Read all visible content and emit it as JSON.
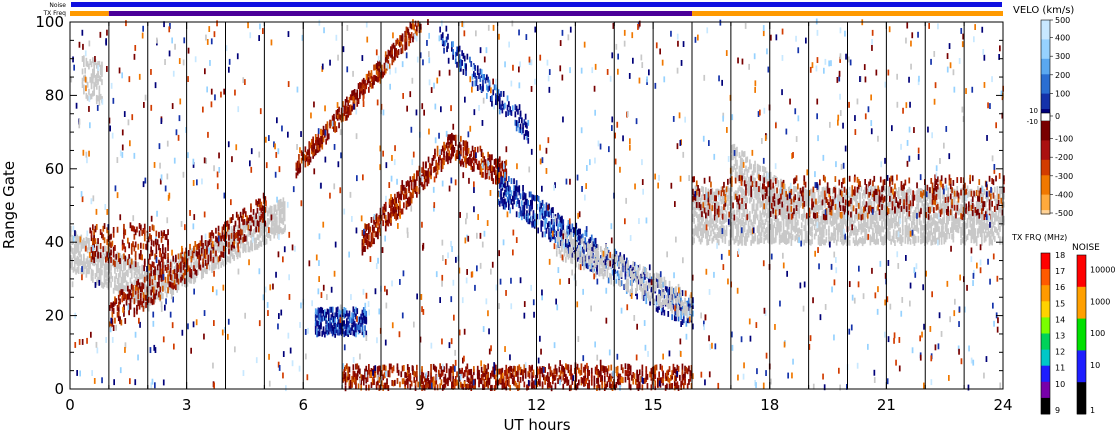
{
  "header": {
    "noise_label": "Noise",
    "txfreq_label": "TX Freq",
    "noise_color": "#1010e0",
    "txfreq_segments": [
      {
        "from": 0,
        "to": 1,
        "color": "#ff9a00"
      },
      {
        "from": 1,
        "to": 16,
        "color": "#4b0099"
      },
      {
        "from": 16,
        "to": 24,
        "color": "#ff9a00"
      }
    ]
  },
  "chart_data": {
    "type": "heatmap",
    "title": "",
    "xlabel": "UT hours",
    "ylabel": "Range Gate",
    "xlim": [
      0,
      24
    ],
    "ylim": [
      0,
      100
    ],
    "xticks": [
      0,
      3,
      6,
      9,
      12,
      15,
      18,
      21,
      24
    ],
    "yticks": [
      0,
      20,
      40,
      60,
      80,
      100
    ],
    "vertical_hour_lines": [
      1,
      2,
      3,
      4,
      5,
      6,
      7,
      8,
      9,
      10,
      11,
      12,
      13,
      14,
      15,
      16,
      17,
      18,
      19,
      20,
      21,
      22,
      23
    ],
    "ground_scatter_color": "#c8c8c8",
    "bands": [
      {
        "kind": "gs",
        "from": [
          0,
          38
        ],
        "to": [
          2,
          27
        ],
        "width": 10,
        "density": 0.55
      },
      {
        "kind": "gs",
        "from": [
          2,
          27
        ],
        "to": [
          5.5,
          47
        ],
        "width": 8,
        "density": 0.55
      },
      {
        "kind": "neg",
        "from": [
          1,
          20
        ],
        "to": [
          5,
          48
        ],
        "width": 8,
        "density": 0.35
      },
      {
        "kind": "neg",
        "from": [
          0.5,
          40
        ],
        "to": [
          2.5,
          38
        ],
        "width": 10,
        "density": 0.25
      },
      {
        "kind": "neg",
        "from": [
          5.8,
          60
        ],
        "to": [
          9,
          100
        ],
        "width": 4,
        "density": 0.55
      },
      {
        "kind": "neg",
        "from": [
          7.5,
          40
        ],
        "to": [
          9.8,
          66
        ],
        "width": 6,
        "density": 0.55
      },
      {
        "kind": "neg",
        "from": [
          9.8,
          66
        ],
        "to": [
          11.2,
          58
        ],
        "width": 6,
        "density": 0.5
      },
      {
        "kind": "pos",
        "from": [
          11,
          55
        ],
        "to": [
          13.5,
          36
        ],
        "width": 8,
        "density": 0.45
      },
      {
        "kind": "pos",
        "from": [
          13.5,
          36
        ],
        "to": [
          16,
          20
        ],
        "width": 8,
        "density": 0.35
      },
      {
        "kind": "gs",
        "from": [
          12.5,
          40
        ],
        "to": [
          16,
          22
        ],
        "width": 7,
        "density": 0.35
      },
      {
        "kind": "pos",
        "from": [
          9.5,
          95
        ],
        "to": [
          11.8,
          70
        ],
        "width": 5,
        "density": 0.3
      },
      {
        "kind": "pos",
        "from": [
          6.3,
          18
        ],
        "to": [
          7.6,
          18
        ],
        "width": 6,
        "density": 0.7
      },
      {
        "kind": "neg",
        "from": [
          7,
          3
        ],
        "to": [
          16,
          3
        ],
        "width": 5,
        "density": 0.45
      },
      {
        "kind": "gs",
        "from": [
          16,
          47
        ],
        "to": [
          24,
          47
        ],
        "width": 14,
        "density": 0.55
      },
      {
        "kind": "gs",
        "from": [
          17,
          62
        ],
        "to": [
          18.5,
          50
        ],
        "width": 8,
        "density": 0.5
      },
      {
        "kind": "neg",
        "from": [
          16,
          52
        ],
        "to": [
          24,
          52
        ],
        "width": 10,
        "density": 0.15
      },
      {
        "kind": "gs",
        "from": [
          0.3,
          85
        ],
        "to": [
          0.8,
          83
        ],
        "width": 10,
        "density": 0.4
      }
    ],
    "velocity_colorbar": {
      "title": "VELO (km/s)",
      "labels": [
        "500",
        "400",
        "300",
        "200",
        "100",
        "10",
        "0",
        "-10",
        "-100",
        "-200",
        "-300",
        "-400",
        "-500"
      ],
      "colors": [
        "#c8e8ff",
        "#96d2ff",
        "#5aa8f0",
        "#2a6ed2",
        "#1432aa",
        "#000078",
        "#ffffff",
        "#780000",
        "#aa1010",
        "#d23c00",
        "#f07800",
        "#ffaa3c",
        "#ffd296"
      ]
    },
    "txfreq_colorbar": {
      "title": "TX FRQ (MHz)",
      "labels": [
        "18",
        "17",
        "16",
        "15",
        "14",
        "13",
        "12",
        "11",
        "10",
        "9"
      ],
      "colors": [
        "#ff0000",
        "#ff5a00",
        "#ff9a00",
        "#ffd200",
        "#7aff00",
        "#00d25a",
        "#00c8c8",
        "#1e1eff",
        "#7800aa",
        "#000000"
      ]
    },
    "noise_colorbar": {
      "title": "NOISE",
      "labels": [
        "10000",
        "1000",
        "100",
        "10",
        "1"
      ],
      "colors": [
        "#ff0000",
        "#ffa000",
        "#00e000",
        "#1e1eff",
        "#000000"
      ]
    }
  }
}
